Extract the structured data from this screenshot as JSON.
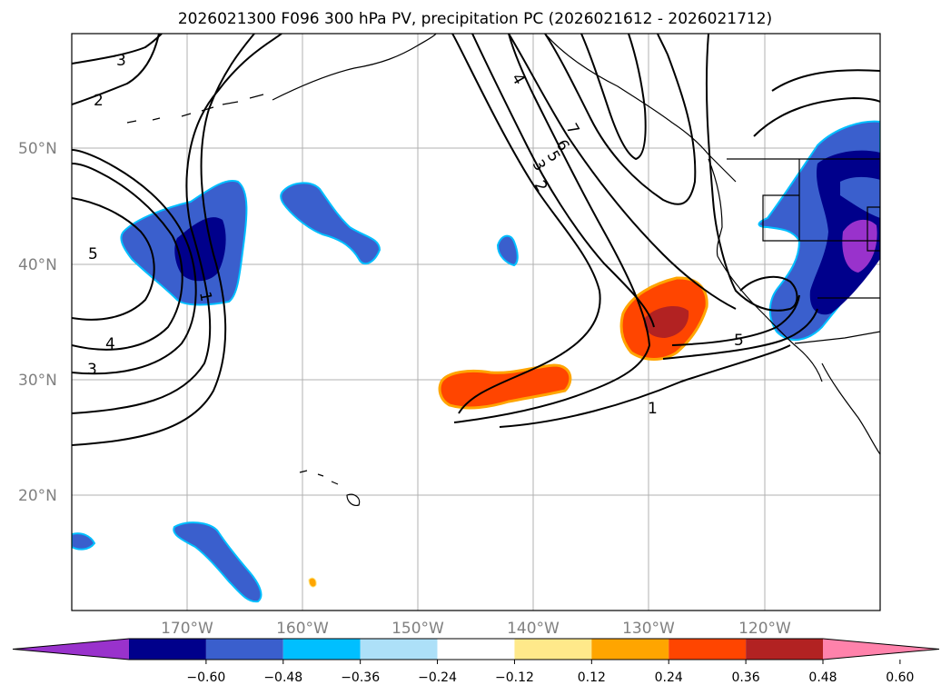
{
  "title": "2026021300 F096 300 hPa PV, precipitation PC (2026021612 - 2026021712)",
  "lat_labels": [
    "50°N",
    "40°N",
    "30°N",
    "20°N"
  ],
  "lon_labels": [
    "170°W",
    "160°W",
    "150°W",
    "140°W",
    "130°W",
    "120°W"
  ],
  "colorbar": {
    "tick_labels": [
      "−0.60",
      "−0.48",
      "−0.36",
      "−0.24",
      "−0.12",
      "0.12",
      "0.24",
      "0.36",
      "0.48",
      "0.60"
    ],
    "colors": [
      "#9932CC",
      "#00008B",
      "#3A5FCD",
      "#00BFFF",
      "#ADE0F8",
      "#FFFFFF",
      "#FFE98A",
      "#FFA500",
      "#FF4500",
      "#B22222",
      "#FF82AB"
    ]
  },
  "pv_contour_labels": [
    "3",
    "2",
    "5",
    "4",
    "3",
    "1",
    "4",
    "7",
    "6",
    "5",
    "3",
    "2",
    "5",
    "1"
  ],
  "colors": {
    "land_outline": "#000000",
    "grid": "#b0b0b0"
  }
}
